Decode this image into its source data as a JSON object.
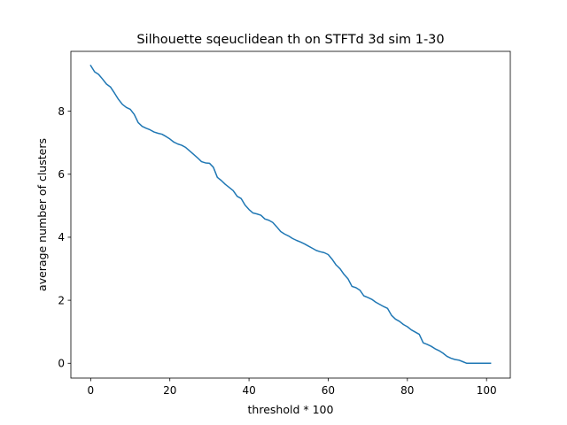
{
  "chart_data": {
    "type": "line",
    "title": "Silhouette sqeuclidean th on STFTd 3d sim 1-30",
    "xlabel": "threshold * 100",
    "ylabel": "average number of clusters",
    "xlim": [
      -5,
      106
    ],
    "ylim": [
      -0.47,
      9.9
    ],
    "xticks": [
      0,
      20,
      40,
      60,
      80,
      100
    ],
    "yticks": [
      0,
      2,
      4,
      6,
      8
    ],
    "grid": false,
    "line_color": "#1f77b4",
    "series": [
      {
        "x": [
          0,
          1,
          2,
          3,
          4,
          5,
          6,
          7,
          8,
          9,
          10,
          11,
          12,
          13,
          14,
          15,
          16,
          17,
          18,
          19,
          20,
          21,
          22,
          23,
          24,
          25,
          26,
          27,
          28,
          29,
          30,
          31,
          32,
          33,
          34,
          35,
          36,
          37,
          38,
          39,
          40,
          41,
          42,
          43,
          44,
          45,
          46,
          47,
          48,
          49,
          50,
          51,
          52,
          53,
          54,
          55,
          56,
          57,
          58,
          59,
          60,
          61,
          62,
          63,
          64,
          65,
          66,
          67,
          68,
          69,
          70,
          71,
          72,
          73,
          74,
          75,
          76,
          77,
          78,
          79,
          80,
          81,
          82,
          83,
          84,
          85,
          86,
          87,
          88,
          89,
          90,
          91,
          92,
          93,
          94,
          95,
          96,
          97,
          98,
          99,
          100,
          101
        ],
        "y": [
          9.45,
          9.25,
          9.17,
          9.02,
          8.86,
          8.77,
          8.58,
          8.38,
          8.22,
          8.12,
          8.06,
          7.9,
          7.64,
          7.52,
          7.46,
          7.41,
          7.34,
          7.3,
          7.27,
          7.2,
          7.12,
          7.02,
          6.96,
          6.92,
          6.85,
          6.74,
          6.63,
          6.52,
          6.4,
          6.36,
          6.35,
          6.22,
          5.9,
          5.8,
          5.68,
          5.58,
          5.48,
          5.3,
          5.23,
          5.02,
          4.88,
          4.77,
          4.74,
          4.7,
          4.58,
          4.54,
          4.47,
          4.33,
          4.18,
          4.1,
          4.04,
          3.96,
          3.9,
          3.85,
          3.79,
          3.72,
          3.65,
          3.58,
          3.54,
          3.51,
          3.45,
          3.3,
          3.12,
          3.0,
          2.82,
          2.68,
          2.44,
          2.4,
          2.32,
          2.14,
          2.09,
          2.03,
          1.94,
          1.87,
          1.8,
          1.74,
          1.52,
          1.4,
          1.33,
          1.23,
          1.16,
          1.06,
          0.99,
          0.92,
          0.65,
          0.6,
          0.54,
          0.46,
          0.4,
          0.32,
          0.22,
          0.16,
          0.12,
          0.1,
          0.05,
          0.0,
          0.0,
          0.0,
          0.0,
          0.0,
          0.0,
          0.0
        ]
      }
    ]
  }
}
